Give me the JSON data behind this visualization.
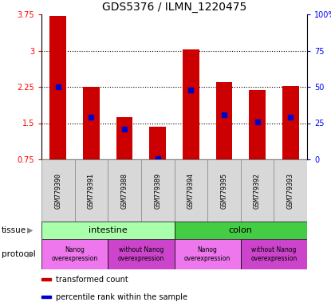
{
  "title": "GDS5376 / ILMN_1220475",
  "samples": [
    "GSM779390",
    "GSM779391",
    "GSM779388",
    "GSM779389",
    "GSM779394",
    "GSM779395",
    "GSM779392",
    "GSM779393"
  ],
  "bar_values": [
    3.72,
    2.25,
    1.62,
    1.42,
    3.02,
    2.35,
    2.18,
    2.27
  ],
  "percentile_values": [
    2.25,
    1.63,
    1.38,
    0.77,
    2.18,
    1.68,
    1.52,
    1.62
  ],
  "ylim": [
    0.75,
    3.75
  ],
  "y_ticks": [
    0.75,
    1.5,
    2.25,
    3.0,
    3.75
  ],
  "y_tick_labels": [
    "0.75",
    "1.5",
    "2.25",
    "3",
    "3.75"
  ],
  "right_y_ticks": [
    0.75,
    1.5,
    2.25,
    3.0,
    3.75
  ],
  "right_y_tick_labels": [
    "0",
    "25",
    "50",
    "75",
    "100%"
  ],
  "bar_color": "#cc0000",
  "percentile_color": "#0000cc",
  "tissue_groups": [
    {
      "label": "intestine",
      "start": 0,
      "end": 4,
      "color": "#aaffaa"
    },
    {
      "label": "colon",
      "start": 4,
      "end": 8,
      "color": "#44cc44"
    }
  ],
  "protocol_groups": [
    {
      "label": "Nanog\noverexpression",
      "start": 0,
      "end": 2,
      "color": "#ee77ee"
    },
    {
      "label": "without Nanog\noverexpression",
      "start": 2,
      "end": 4,
      "color": "#cc44cc"
    },
    {
      "label": "Nanog\noverexpression",
      "start": 4,
      "end": 6,
      "color": "#ee77ee"
    },
    {
      "label": "without Nanog\noverexpression",
      "start": 6,
      "end": 8,
      "color": "#cc44cc"
    }
  ],
  "legend_items": [
    {
      "label": "transformed count",
      "color": "#cc0000"
    },
    {
      "label": "percentile rank within the sample",
      "color": "#0000cc"
    }
  ]
}
